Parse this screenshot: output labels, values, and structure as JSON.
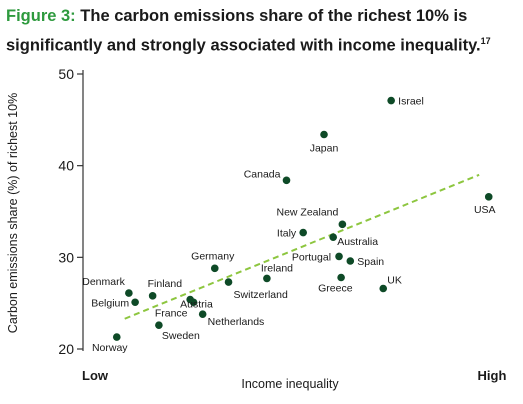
{
  "title": {
    "figure_label": "Figure 3:",
    "line1": "The carbon emissions share of the richest 10% is",
    "line2": "significantly and strongly associated with income inequality.",
    "footnote": "17"
  },
  "colors": {
    "accent": "#2e9a3e",
    "point": "#0e4a27",
    "trend": "#8dc63f"
  },
  "chart_data": {
    "type": "scatter",
    "xlabel": "Income inequality",
    "ylabel": "Carbon emissions share (%) of richest 10%",
    "x_tick_labels": [
      "Low",
      "High"
    ],
    "xlim": [
      0,
      100
    ],
    "ylim": [
      20,
      50
    ],
    "y_ticks": [
      20,
      30,
      40,
      50
    ],
    "grid": false,
    "trendline": {
      "style": "dashed",
      "from": [
        10,
        23.3
      ],
      "to": [
        95,
        39.0
      ]
    },
    "points": [
      {
        "label": "Israel",
        "x": 73.9,
        "y": 47.1
      },
      {
        "label": "Japan",
        "x": 57.8,
        "y": 43.4
      },
      {
        "label": "Canada",
        "x": 48.8,
        "y": 38.4
      },
      {
        "label": "USA",
        "x": 97.3,
        "y": 36.6
      },
      {
        "label": "New Zealand",
        "x": 62.2,
        "y": 33.6
      },
      {
        "label": "Italy",
        "x": 52.8,
        "y": 32.7
      },
      {
        "label": "Australia",
        "x": 60.0,
        "y": 32.2
      },
      {
        "label": "Portugal",
        "x": 61.4,
        "y": 30.1
      },
      {
        "label": "Spain",
        "x": 64.1,
        "y": 29.6
      },
      {
        "label": "Germany",
        "x": 31.6,
        "y": 28.8
      },
      {
        "label": "Ireland",
        "x": 44.1,
        "y": 27.7
      },
      {
        "label": "Greece",
        "x": 61.9,
        "y": 27.8
      },
      {
        "label": "UK",
        "x": 72.0,
        "y": 26.6
      },
      {
        "label": "Switzerland",
        "x": 34.9,
        "y": 27.3
      },
      {
        "label": "Denmark",
        "x": 11.0,
        "y": 26.1
      },
      {
        "label": "Finland",
        "x": 16.7,
        "y": 25.8
      },
      {
        "label": "Belgium",
        "x": 12.5,
        "y": 25.1
      },
      {
        "label": "Austria",
        "x": 25.7,
        "y": 25.4
      },
      {
        "label": "France",
        "x": 26.5,
        "y": 25.1
      },
      {
        "label": "Netherlands",
        "x": 28.7,
        "y": 23.8
      },
      {
        "label": "Sweden",
        "x": 18.2,
        "y": 22.6
      },
      {
        "label": "Norway",
        "x": 8.1,
        "y": 21.3
      }
    ]
  }
}
